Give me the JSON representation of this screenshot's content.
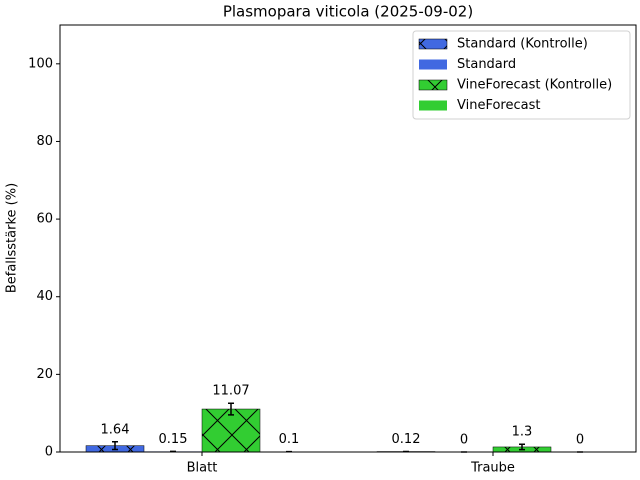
{
  "chart_data": {
    "type": "bar",
    "title": "Plasmopara viticola (2025-09-02)",
    "y_label": "Befallsstärke (%)",
    "categories": [
      "Blatt",
      "Traube"
    ],
    "series": [
      {
        "name": "Standard (Kontrolle)",
        "color": "#4169e1",
        "hatch": "x",
        "values": [
          1.64,
          0.12
        ],
        "errors": [
          1.0,
          0
        ]
      },
      {
        "name": "Standard",
        "color": "#4169e1",
        "values": [
          0.15,
          0
        ],
        "errors": [
          0,
          0
        ]
      },
      {
        "name": "VineForecast (Kontrolle)",
        "color": "#32cd32",
        "hatch": "x",
        "values": [
          11.07,
          1.3
        ],
        "errors": [
          1.5,
          0.7
        ]
      },
      {
        "name": "VineForecast",
        "color": "#32cd32",
        "values": [
          0.1,
          0
        ],
        "errors": [
          0,
          0
        ]
      }
    ],
    "ylim": [
      0,
      110
    ],
    "yticks": [
      0,
      20,
      40,
      60,
      80,
      100
    ],
    "legend": "upper right"
  }
}
